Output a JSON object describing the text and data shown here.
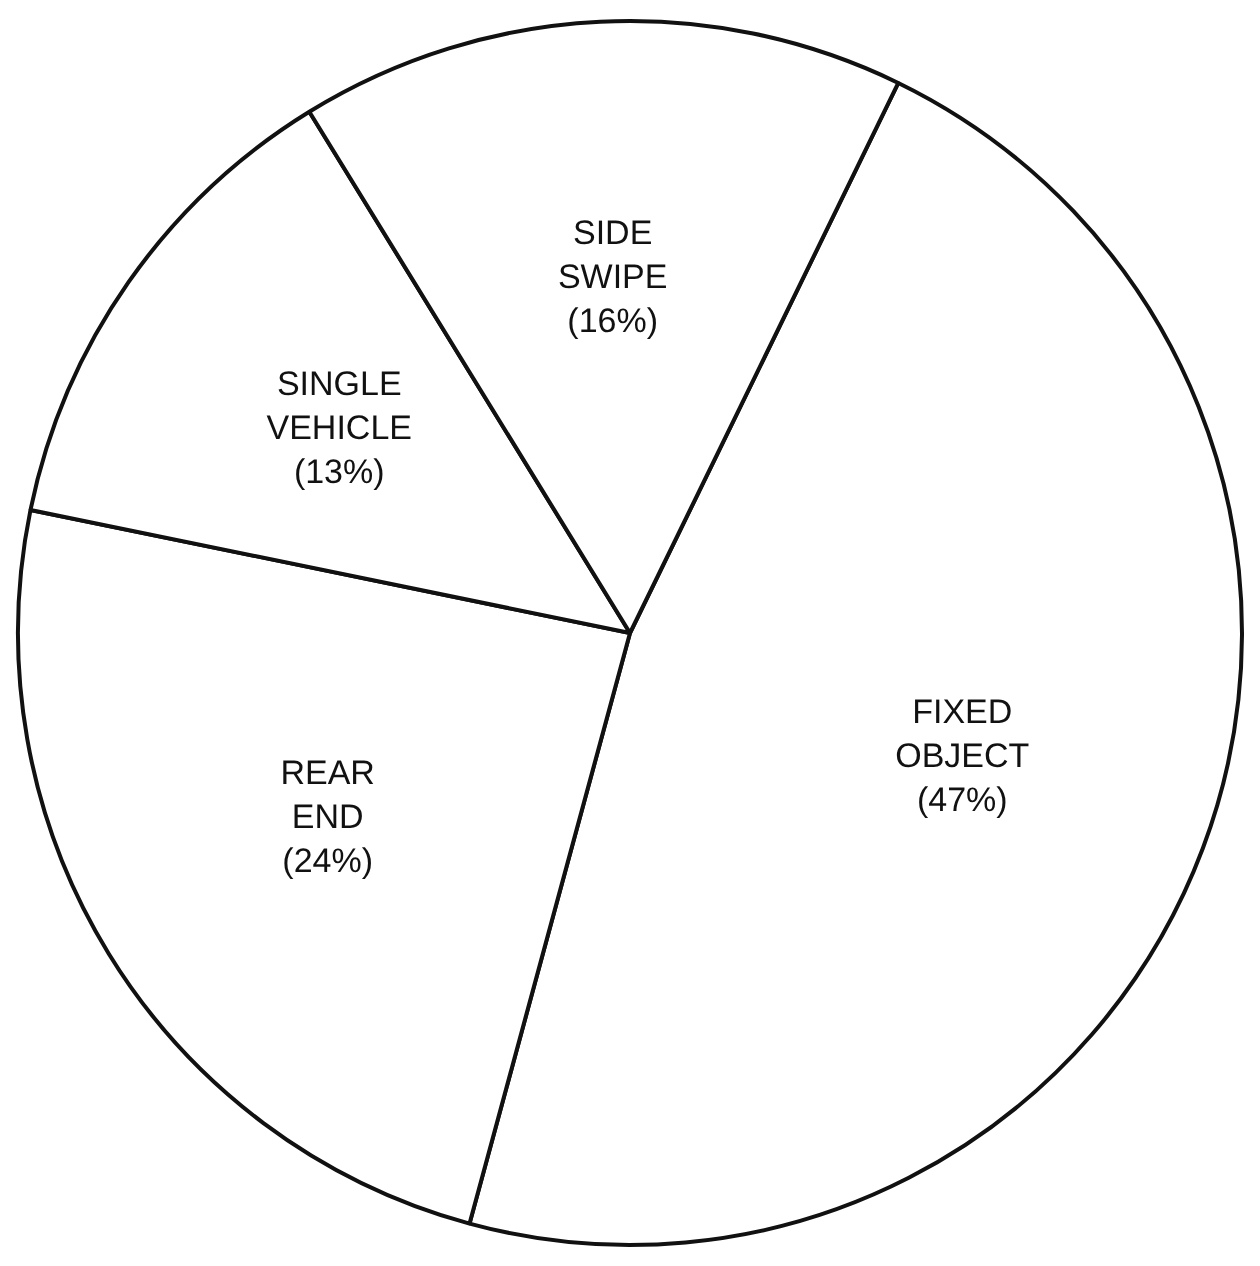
{
  "chart_data": {
    "type": "pie",
    "categories": [
      "FIXED OBJECT",
      "REAR END",
      "SINGLE VEHICLE",
      "SIDE SWIPE"
    ],
    "values": [
      47,
      24,
      13,
      16
    ],
    "colors": [
      "#ffffff",
      "#ffffff",
      "#ffffff",
      "#ffffff"
    ],
    "value_labels": [
      "(47%)",
      "(24%)",
      "(13%)",
      "(16%)"
    ],
    "legend": false
  }
}
